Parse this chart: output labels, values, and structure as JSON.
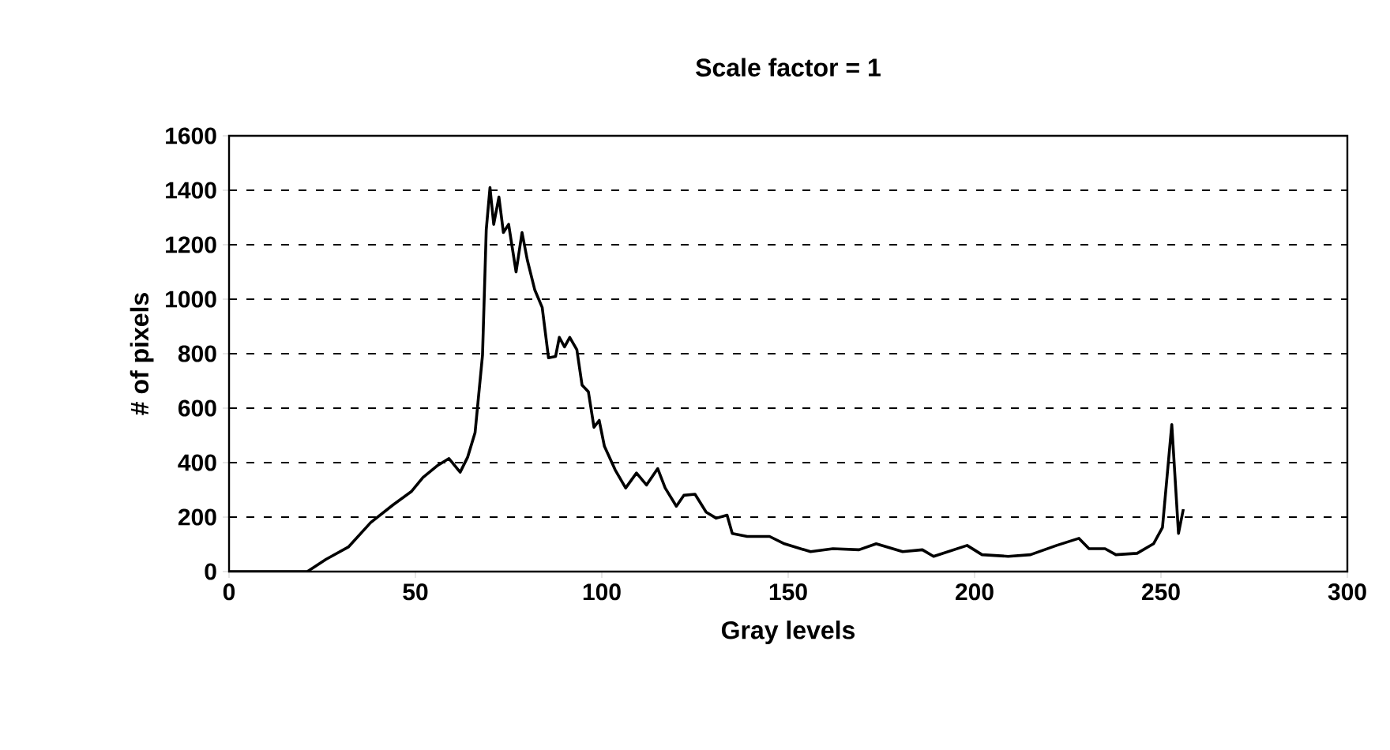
{
  "chart_data": {
    "type": "line",
    "title": "Scale factor = 1",
    "xlabel": "Gray levels",
    "ylabel": "# of pixels",
    "xlim": [
      0,
      300
    ],
    "xticks": [
      0,
      50,
      100,
      150,
      200,
      250,
      300
    ],
    "ylim": [
      0,
      1600
    ],
    "yticks": [
      0,
      200,
      400,
      600,
      800,
      1000,
      1200,
      1400,
      1600
    ],
    "grid": "y",
    "marker": "none",
    "line_style": "solid",
    "series": [
      {
        "color": "#000000",
        "x": [
          0,
          21,
          26,
          32,
          38,
          44,
          49,
          52,
          56,
          59,
          62,
          64,
          66,
          68,
          69,
          70,
          71,
          72.4,
          73.6,
          75,
          77,
          78.6,
          80,
          82,
          84,
          85.7,
          87.6,
          88.6,
          90,
          91.4,
          93.3,
          94.7,
          96.4,
          97.9,
          99.3,
          100.7,
          103.6,
          106.4,
          109.3,
          112,
          115,
          117,
          120,
          122,
          125,
          128,
          130.7,
          133.6,
          135,
          139,
          145,
          149,
          156,
          162,
          169,
          173.6,
          180.7,
          186,
          189,
          198,
          202,
          209,
          215,
          222,
          228,
          230.7,
          235,
          237.9,
          243.6,
          248,
          250.4,
          252.9,
          254.7,
          256
        ],
        "values": [
          0,
          0,
          45,
          90,
          180,
          245,
          295,
          345,
          390,
          415,
          365,
          420,
          510,
          795,
          1255,
          1410,
          1275,
          1375,
          1245,
          1275,
          1100,
          1245,
          1145,
          1035,
          970,
          785,
          790,
          860,
          825,
          860,
          815,
          685,
          660,
          530,
          555,
          460,
          373,
          307,
          362,
          318,
          378,
          307,
          240,
          280,
          284,
          218,
          196,
          207,
          140,
          129,
          129,
          102,
          73,
          84,
          80,
          102,
          73,
          80,
          56,
          96,
          62,
          56,
          62,
          96,
          122,
          84,
          84,
          62,
          67,
          102,
          162,
          540,
          140,
          229
        ]
      }
    ]
  }
}
